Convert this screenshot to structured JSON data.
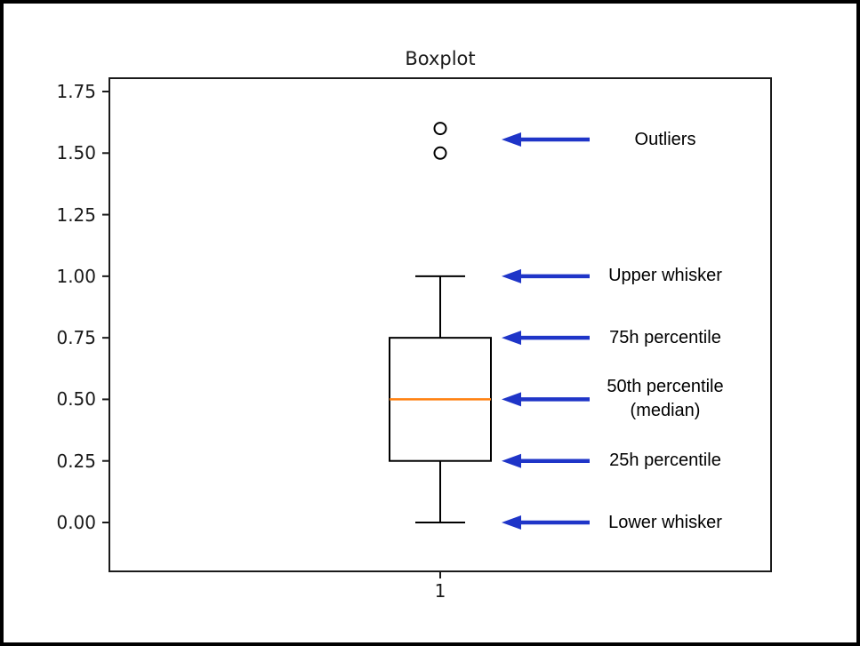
{
  "title": "Boxplot",
  "chart_data": {
    "type": "boxplot",
    "title": "Boxplot",
    "categories": [
      "1"
    ],
    "series": [
      {
        "name": "1",
        "lower_whisker": 0.0,
        "q1": 0.25,
        "median": 0.5,
        "q3": 0.75,
        "upper_whisker": 1.0,
        "outliers": [
          1.5,
          1.6
        ]
      }
    ],
    "xlabel": "",
    "ylabel": "",
    "ylim": [
      -0.2,
      1.81
    ],
    "yticks": [
      "0.00",
      "0.25",
      "0.50",
      "0.75",
      "1.00",
      "1.25",
      "1.50",
      "1.75"
    ],
    "xticks": [
      "1"
    ],
    "grid": false,
    "legend": "none",
    "colors": {
      "box_line": "#000000",
      "median_line": "#ff7f0e",
      "axis_spine": "#1a1a1a",
      "arrow": "#1f35c8",
      "background": "#ffffff"
    }
  },
  "annotations": [
    {
      "label": "Outliers",
      "label2": "",
      "value": 1.555
    },
    {
      "label": "Upper whisker",
      "label2": "",
      "value": 1.0
    },
    {
      "label": "75h percentile",
      "label2": "",
      "value": 0.75
    },
    {
      "label": "50th percentile",
      "label2": "(median)",
      "value": 0.5
    },
    {
      "label": "25h percentile",
      "label2": "",
      "value": 0.25
    },
    {
      "label": "Lower whisker",
      "label2": "",
      "value": 0.0
    }
  ]
}
